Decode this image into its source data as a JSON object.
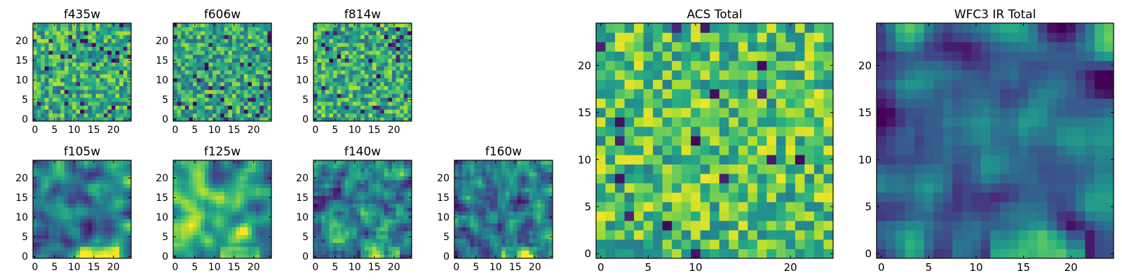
{
  "chart_data": [
    {
      "type": "heatmap",
      "title": "f435w",
      "x_ticks": [
        0,
        5,
        10,
        15,
        20
      ],
      "y_ticks": [
        0,
        5,
        10,
        15,
        20
      ],
      "grid_size": 25,
      "colormap": "viridis",
      "seed": 11,
      "smoothness": 0,
      "bias": 0.62,
      "dark_fraction": 0.05
    },
    {
      "type": "heatmap",
      "title": "f606w",
      "x_ticks": [
        0,
        5,
        10,
        15,
        20
      ],
      "y_ticks": [
        0,
        5,
        10,
        15,
        20
      ],
      "grid_size": 25,
      "colormap": "viridis",
      "seed": 23,
      "smoothness": 0,
      "bias": 0.6,
      "dark_fraction": 0.06
    },
    {
      "type": "heatmap",
      "title": "f814w",
      "x_ticks": [
        0,
        5,
        10,
        15,
        20
      ],
      "y_ticks": [
        0,
        5,
        10,
        15,
        20
      ],
      "grid_size": 25,
      "colormap": "viridis",
      "seed": 37,
      "smoothness": 0,
      "bias": 0.62,
      "dark_fraction": 0.05
    },
    {
      "type": "heatmap",
      "title": "f105w",
      "x_ticks": [
        0,
        5,
        10,
        15,
        20
      ],
      "y_ticks": [
        0,
        5,
        10,
        15,
        20
      ],
      "grid_size": 25,
      "colormap": "viridis",
      "seed": 41,
      "smoothness": 2,
      "bias": 0.48,
      "dark_fraction": 0.0
    },
    {
      "type": "heatmap",
      "title": "f125w",
      "x_ticks": [
        0,
        5,
        10,
        15,
        20
      ],
      "y_ticks": [
        0,
        5,
        10,
        15,
        20
      ],
      "grid_size": 25,
      "colormap": "viridis",
      "seed": 53,
      "smoothness": 2,
      "bias": 0.6,
      "dark_fraction": 0.0
    },
    {
      "type": "heatmap",
      "title": "f140w",
      "x_ticks": [
        0,
        5,
        10,
        15,
        20
      ],
      "y_ticks": [
        0,
        5,
        10,
        15,
        20
      ],
      "grid_size": 25,
      "colormap": "viridis",
      "seed": 67,
      "smoothness": 1,
      "bias": 0.42,
      "dark_fraction": 0.0
    },
    {
      "type": "heatmap",
      "title": "f160w",
      "x_ticks": [
        0,
        5,
        10,
        15,
        20
      ],
      "y_ticks": [
        0,
        5,
        10,
        15,
        20
      ],
      "grid_size": 25,
      "colormap": "viridis",
      "seed": 79,
      "smoothness": 1,
      "bias": 0.38,
      "dark_fraction": 0.0
    },
    {
      "type": "heatmap",
      "title": "ACS Total",
      "x_ticks": [
        0,
        5,
        10,
        20
      ],
      "y_ticks": [
        0,
        5,
        10,
        15,
        20
      ],
      "grid_size": 25,
      "colormap": "viridis",
      "seed": 97,
      "smoothness": 0,
      "bias": 0.7,
      "dark_fraction": 0.025
    },
    {
      "type": "heatmap",
      "title": "WFC3 IR Total",
      "x_ticks": [
        0,
        5,
        10,
        15,
        20
      ],
      "y_ticks": [
        0,
        5,
        10,
        15,
        20
      ],
      "grid_size": 25,
      "colormap": "viridis",
      "seed": 113,
      "smoothness": 2,
      "bias": 0.35,
      "dark_fraction": 0.0
    }
  ]
}
